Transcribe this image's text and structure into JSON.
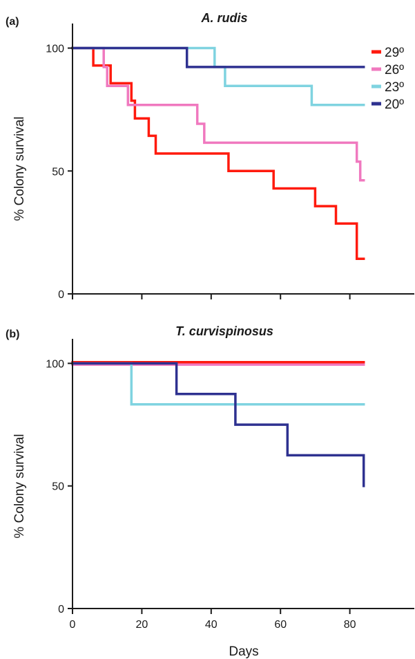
{
  "figure": {
    "shared_xlabel": "Days"
  },
  "chart_data": [
    {
      "type": "line",
      "step": true,
      "panel_label": "(a)",
      "title": "A. rudis",
      "xlabel": "",
      "ylabel": "% Colony survival",
      "xlim": [
        0,
        99
      ],
      "ylim": [
        0,
        110
      ],
      "xticks": [
        0,
        20,
        40,
        60,
        80
      ],
      "xtick_labels_shown": false,
      "yticks": [
        0,
        50,
        100
      ],
      "legend": {
        "placement": "top-right"
      },
      "series": [
        {
          "name": "29º",
          "color": "#ff1a0d",
          "x": [
            0,
            6,
            6,
            11,
            11,
            17,
            17,
            18,
            18,
            22,
            22,
            24,
            24,
            45,
            45,
            58,
            58,
            70,
            70,
            76,
            76,
            82,
            82,
            84
          ],
          "y": [
            100,
            100,
            92.9,
            92.9,
            85.7,
            85.7,
            78.6,
            78.6,
            71.4,
            71.4,
            64.3,
            64.3,
            57.1,
            57.1,
            50,
            50,
            42.9,
            42.9,
            35.7,
            35.7,
            28.6,
            28.6,
            14.3,
            14.3
          ]
        },
        {
          "name": "26º",
          "color": "#f079bf",
          "x": [
            0,
            9,
            9,
            10,
            10,
            16,
            16,
            17,
            17,
            36,
            36,
            38,
            38,
            82,
            82,
            83,
            83,
            84
          ],
          "y": [
            100,
            100,
            92.3,
            92.3,
            84.6,
            84.6,
            76.9,
            76.9,
            76.9,
            76.9,
            69.2,
            69.2,
            61.5,
            61.5,
            53.8,
            53.8,
            46.2,
            46.2
          ]
        },
        {
          "name": "23º",
          "color": "#7fd3e0",
          "x": [
            0,
            41,
            41,
            44,
            44,
            69,
            69,
            84
          ],
          "y": [
            100,
            100,
            92.3,
            92.3,
            84.6,
            84.6,
            76.9,
            76.9
          ]
        },
        {
          "name": "20º",
          "color": "#2e3190",
          "x": [
            0,
            33,
            33,
            84
          ],
          "y": [
            100,
            100,
            92.3,
            92.3
          ]
        }
      ]
    },
    {
      "type": "line",
      "step": true,
      "panel_label": "(b)",
      "title": "T. curvispinosus",
      "xlabel": "Days",
      "ylabel": "% Colony survival",
      "xlim": [
        0,
        99
      ],
      "ylim": [
        0,
        110
      ],
      "xticks": [
        0,
        20,
        40,
        60,
        80
      ],
      "xtick_labels_shown": true,
      "yticks": [
        0,
        50,
        100
      ],
      "series": [
        {
          "color": "#ff1a0d",
          "x": [
            0,
            84
          ],
          "y": [
            100.5,
            100.5
          ]
        },
        {
          "color": "#f079bf",
          "x": [
            0,
            84
          ],
          "y": [
            99.5,
            99.5
          ]
        },
        {
          "color": "#7fd3e0",
          "x": [
            0,
            17,
            17,
            84
          ],
          "y": [
            100,
            100,
            83.3,
            83.3
          ]
        },
        {
          "color": "#2e3190",
          "x": [
            0,
            30,
            30,
            47,
            47,
            62,
            62,
            84,
            84
          ],
          "y": [
            100,
            100,
            87.5,
            87.5,
            75,
            75,
            62.5,
            62.5,
            50
          ]
        }
      ]
    }
  ]
}
